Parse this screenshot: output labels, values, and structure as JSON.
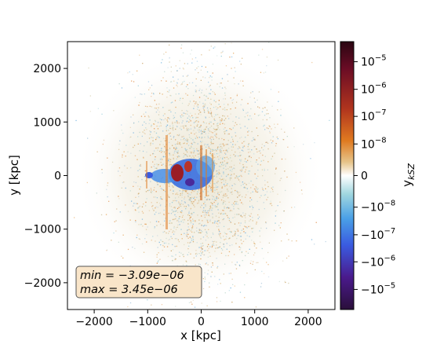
{
  "chart_data": {
    "type": "heatmap",
    "title": "",
    "xlabel": "x [kpc]",
    "ylabel": "y [kpc]",
    "xlim": [
      -2500,
      2500
    ],
    "ylim": [
      -2500,
      2500
    ],
    "xticks": [
      -2000,
      -1000,
      0,
      1000,
      2000
    ],
    "xtick_labels": [
      "−2000",
      "−1000",
      "0",
      "1000",
      "2000"
    ],
    "yticks": [
      2000,
      1000,
      0,
      -1000,
      -2000
    ],
    "ytick_labels": [
      "2000",
      "1000",
      "0",
      "−1000",
      "−2000"
    ],
    "grid": false,
    "colorbar": {
      "label_base": "y",
      "label_sub": "kSZ",
      "scale": "symlog",
      "tick_labels": [
        {
          "value": "1e-5",
          "base": "10",
          "exp": "−5"
        },
        {
          "value": "1e-6",
          "base": "10",
          "exp": "−6"
        },
        {
          "value": "1e-7",
          "base": "10",
          "exp": "−7"
        },
        {
          "value": "1e-8",
          "base": "10",
          "exp": "−8"
        },
        {
          "value": "0",
          "base": "0",
          "exp": ""
        },
        {
          "value": "-1e-8",
          "base": "−10",
          "exp": "−8"
        },
        {
          "value": "-1e-7",
          "base": "−10",
          "exp": "−7"
        },
        {
          "value": "-1e-6",
          "base": "−10",
          "exp": "−6"
        },
        {
          "value": "-1e-5",
          "base": "−10",
          "exp": "−5"
        }
      ],
      "colors": [
        "#2a0f3a",
        "#4a1a8c",
        "#3a5be0",
        "#4aa0e6",
        "#9fd6df",
        "#ffffff",
        "#e6c48a",
        "#e07a20",
        "#b0341e",
        "#6a0c25",
        "#2a0612"
      ]
    },
    "annotation": {
      "min_label": "min",
      "min_value": "−3.09e−06",
      "max_label": "max",
      "max_value": "3.45e−06",
      "box_color": "#f9e5c9"
    }
  }
}
